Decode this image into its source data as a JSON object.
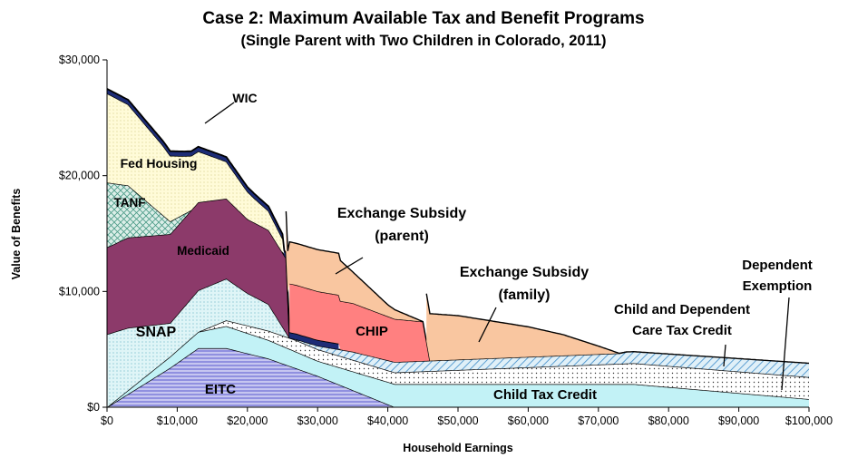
{
  "chart_data": {
    "type": "area",
    "title": "Case 2: Maximum Available Tax and Benefit Programs",
    "subtitle": "(Single Parent with Two Children in Colorado, 2011)",
    "xlabel": "Household Earnings",
    "ylabel": "Value of Benefits",
    "xlim": [
      0,
      100000
    ],
    "ylim": [
      0,
      30000
    ],
    "x_ticks": [
      "$0",
      "$10,000",
      "$20,000",
      "$30,000",
      "$40,000",
      "$50,000",
      "$60,000",
      "$70,000",
      "$80,000",
      "$90,000",
      "$100,000"
    ],
    "y_ticks": [
      "$0",
      "$10,000",
      "$20,000",
      "$30,000"
    ],
    "grid": false,
    "legend": "none (series labeled directly on chart)",
    "series": [
      {
        "name": "EITC",
        "color": "#c6c6f0",
        "x": [
          0,
          9000,
          13000,
          17000,
          23000,
          30000,
          41000
        ],
        "y": [
          0,
          3400,
          5100,
          5100,
          4200,
          2700,
          0
        ]
      },
      {
        "name": "Child Tax Credit",
        "color": "#c2f2f6",
        "x": [
          0,
          13000,
          17000,
          23000,
          30000,
          41000,
          75000,
          100000
        ],
        "y": [
          0,
          1400,
          1900,
          1600,
          1300,
          2000,
          2000,
          700
        ]
      },
      {
        "name": "Child and Dependent Care Tax Credit",
        "color": "#ffffff",
        "x": [
          13000,
          17000,
          27000,
          38000,
          41000,
          75000,
          100000
        ],
        "y": [
          0,
          500,
          1000,
          1000,
          1000,
          1800,
          1900
        ]
      },
      {
        "name": "Dependent Exemption",
        "color": "#e8f2f8",
        "x": [
          26000,
          35000,
          41000,
          73000,
          74000,
          75000,
          100000
        ],
        "y": [
          0,
          700,
          900,
          900,
          1000,
          1000,
          1200
        ]
      },
      {
        "name": "SNAP",
        "color": "#dff3f6",
        "x": [
          0,
          3000,
          9000,
          13000,
          17000,
          20000,
          23000,
          26000
        ],
        "y": [
          6300,
          5400,
          2900,
          3600,
          3600,
          2800,
          2300,
          0
        ]
      },
      {
        "name": "Medicaid",
        "color": "#8c3a6a",
        "x": [
          0,
          3000,
          8000,
          13000,
          20000,
          25500,
          26000
        ],
        "y": [
          7500,
          7800,
          7700,
          7600,
          6400,
          6400,
          0
        ]
      },
      {
        "name": "TANF",
        "color": "#c8e8de",
        "x": [
          0,
          3000,
          9000,
          12000
        ],
        "y": [
          5600,
          4500,
          1100,
          0
        ]
      },
      {
        "name": "Fed Housing",
        "color": "#fffad2",
        "x": [
          0,
          3000,
          8000,
          11000,
          14000,
          17000,
          21000,
          25000
        ],
        "y": [
          7700,
          7000,
          6000,
          5000,
          4100,
          3200,
          2100,
          1200
        ]
      },
      {
        "name": "WIC",
        "color": "#1d2c76",
        "x": [
          0,
          25000,
          26000,
          33000
        ],
        "y": [
          400,
          400,
          500,
          500
        ]
      },
      {
        "name": "CHIP",
        "color": "#ff8080",
        "x": [
          26000,
          35000,
          45000,
          46000
        ],
        "y": [
          4200,
          4200,
          3400,
          0
        ]
      },
      {
        "name": "Exchange Subsidy (parent)",
        "color": "#f9c6a0",
        "x": [
          25500,
          33000,
          35000,
          40000,
          45000
        ],
        "y": [
          3600,
          3600,
          2700,
          1000,
          0
        ]
      },
      {
        "name": "Exchange Subsidy (family)",
        "color": "#f9c6a0",
        "x": [
          45500,
          50000,
          60000,
          65000,
          70000,
          73000,
          74000
        ],
        "y": [
          4100,
          3800,
          2600,
          1800,
          700,
          0,
          0
        ]
      }
    ],
    "annotations": {
      "wic": "WIC",
      "fed_housing": "Fed Housing",
      "tanf": "TANF",
      "medicaid": "Medicaid",
      "snap": "SNAP",
      "eitc": "EITC",
      "exchange_parent_1": "Exchange Subsidy",
      "exchange_parent_2": "(parent)",
      "exchange_family_1": "Exchange Subsidy",
      "exchange_family_2": "(family)",
      "chip": "CHIP",
      "child_tax_credit": "Child Tax Credit",
      "cdctc_1": "Child and Dependent",
      "cdctc_2": "Care Tax Credit",
      "dep_exemption_1": "Dependent",
      "dep_exemption_2": "Exemption"
    }
  }
}
